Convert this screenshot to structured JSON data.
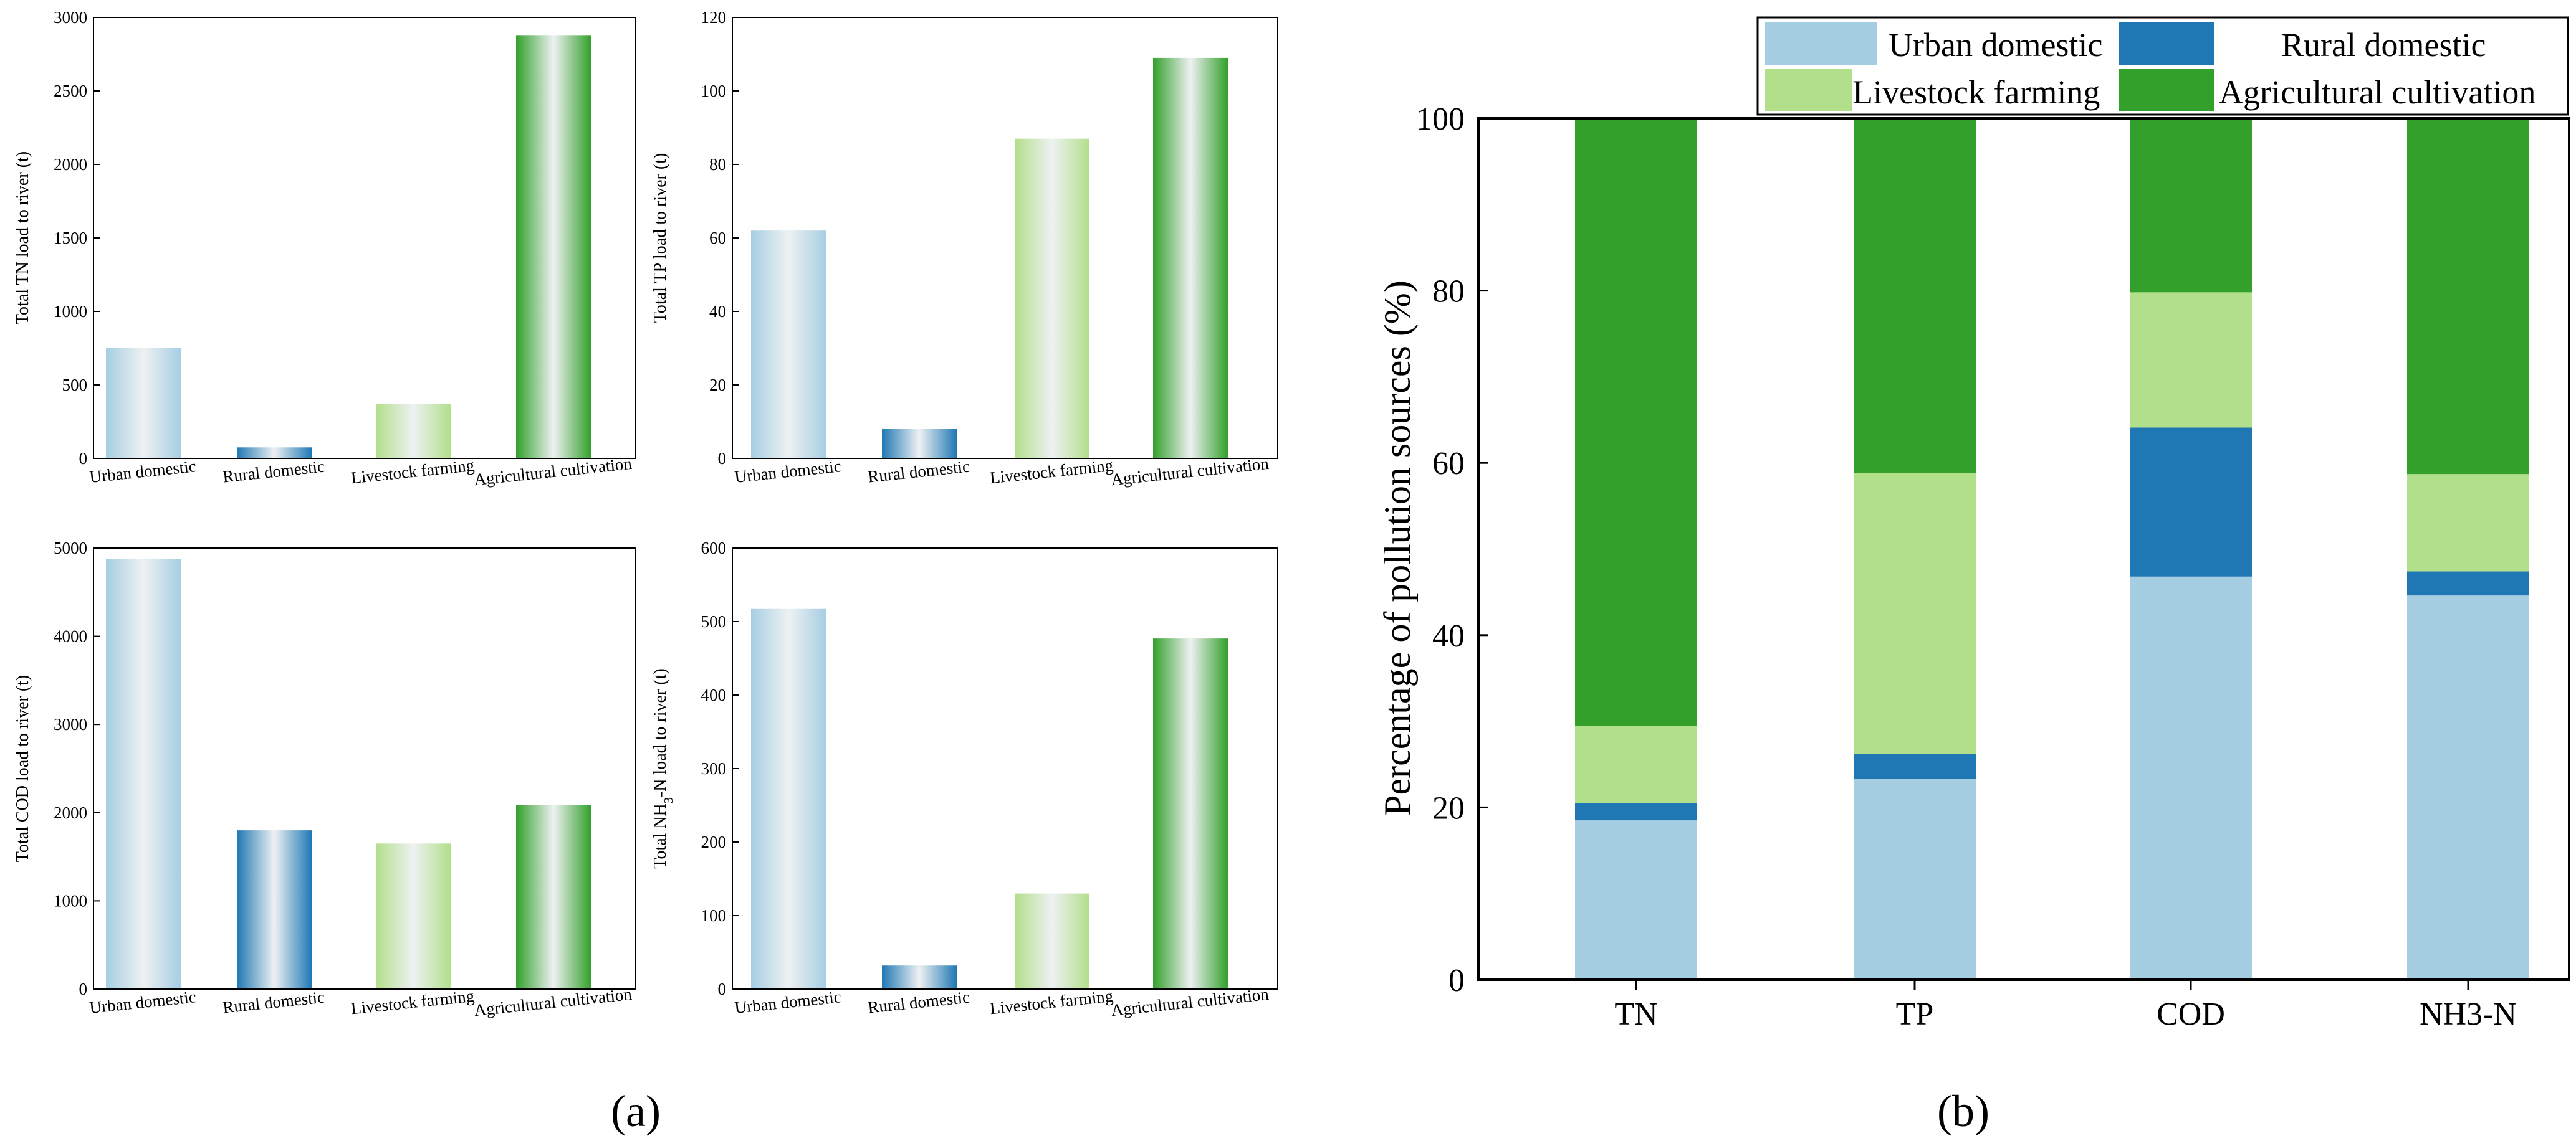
{
  "colors": {
    "urban": "#a6cee3",
    "rural": "#1f78b4",
    "livestock": "#b2df8a",
    "agri": "#33a02c"
  },
  "labels": {
    "a": "(a)",
    "b": "(b)"
  },
  "chart_data": [
    {
      "id": "a1",
      "type": "bar",
      "categories": [
        "Urban domestic",
        "Rural domestic",
        "Livestock farming",
        "Agricultural cultivation"
      ],
      "values": [
        750,
        75,
        370,
        2880
      ],
      "ylabel": "Total TN load to river (t)",
      "ylim": [
        0,
        3000
      ],
      "yticks": [
        0,
        500,
        1000,
        1500,
        2000,
        2500,
        3000
      ]
    },
    {
      "id": "a2",
      "type": "bar",
      "categories": [
        "Urban domestic",
        "Rural domestic",
        "Livestock farming",
        "Agricultural cultivation"
      ],
      "values": [
        62,
        8,
        87,
        109
      ],
      "ylabel": "Total TP load to river (t)",
      "ylim": [
        0,
        120
      ],
      "yticks": [
        0,
        20,
        40,
        60,
        80,
        100,
        120
      ]
    },
    {
      "id": "a3",
      "type": "bar",
      "categories": [
        "Urban domestic",
        "Rural domestic",
        "Livestock farming",
        "Agricultural cultivation"
      ],
      "values": [
        4880,
        1800,
        1650,
        2090
      ],
      "ylabel": "Total COD load to river (t)",
      "ylim": [
        0,
        5000
      ],
      "yticks": [
        0,
        1000,
        2000,
        3000,
        4000,
        5000
      ]
    },
    {
      "id": "a4",
      "type": "bar",
      "categories": [
        "Urban domestic",
        "Rural domestic",
        "Livestock farming",
        "Agricultural cultivation"
      ],
      "values": [
        518,
        32,
        130,
        477
      ],
      "ylabel_pre": "Total NH",
      "ylabel_sub": "3",
      "ylabel_post": "-N load to river (t)",
      "ylim": [
        0,
        600
      ],
      "yticks": [
        0,
        100,
        200,
        300,
        400,
        500,
        600
      ]
    },
    {
      "id": "b",
      "type": "bar",
      "stacked": true,
      "categories": [
        "TN",
        "TP",
        "COD",
        "NH3-N"
      ],
      "series": [
        {
          "name": "Urban domestic",
          "values": [
            18.5,
            23.3,
            46.8,
            44.6
          ]
        },
        {
          "name": "Rural domestic",
          "values": [
            2.0,
            2.9,
            17.3,
            2.8
          ]
        },
        {
          "name": "Livestock farming",
          "values": [
            9.0,
            32.6,
            15.7,
            11.3
          ]
        },
        {
          "name": "Agricultural cultivation",
          "values": [
            70.5,
            41.2,
            20.2,
            41.3
          ]
        }
      ],
      "ylabel": "Percentage of pollution sources (%)",
      "ylim": [
        0,
        100
      ],
      "yticks": [
        0,
        20,
        40,
        60,
        80,
        100
      ],
      "legend_position": "top"
    }
  ]
}
